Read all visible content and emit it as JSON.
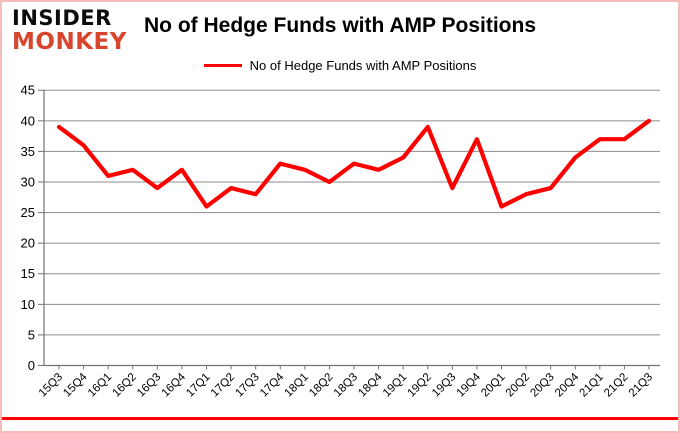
{
  "logo": {
    "line1": "INSIDER",
    "line2": "MONKEY"
  },
  "header": {
    "title": "No of Hedge Funds with AMP Positions"
  },
  "legend": {
    "label": "No of Hedge Funds with AMP Positions"
  },
  "colors": {
    "line": "#ff0000",
    "grid": "#8c8c8c",
    "axis": "#737373",
    "tick_text": "#000000",
    "logo_black": "#0d0d0d",
    "logo_red": "#d9442c",
    "frame_border": "#f5bcbc",
    "bottom_rule": "#fe0000"
  },
  "chart_data": {
    "type": "line",
    "title": "No of Hedge Funds with AMP Positions",
    "categories": [
      "15Q3",
      "15Q4",
      "16Q1",
      "16Q2",
      "16Q3",
      "16Q4",
      "17Q1",
      "17Q2",
      "17Q3",
      "17Q4",
      "18Q1",
      "18Q2",
      "18Q3",
      "18Q4",
      "19Q1",
      "19Q2",
      "19Q3",
      "19Q4",
      "20Q1",
      "20Q2",
      "20Q3",
      "20Q4",
      "21Q1",
      "21Q2",
      "21Q3"
    ],
    "series": [
      {
        "name": "No of Hedge Funds with AMP Positions",
        "values": [
          39,
          36,
          31,
          32,
          29,
          32,
          26,
          29,
          28,
          33,
          32,
          30,
          33,
          32,
          34,
          39,
          29,
          37,
          26,
          28,
          29,
          34,
          37,
          37,
          40
        ]
      }
    ],
    "xlabel": "",
    "ylabel": "",
    "ylim": [
      0,
      45
    ],
    "yticks": [
      0,
      5,
      10,
      15,
      20,
      25,
      30,
      35,
      40,
      45
    ],
    "grid": true,
    "legend_position": "top"
  }
}
